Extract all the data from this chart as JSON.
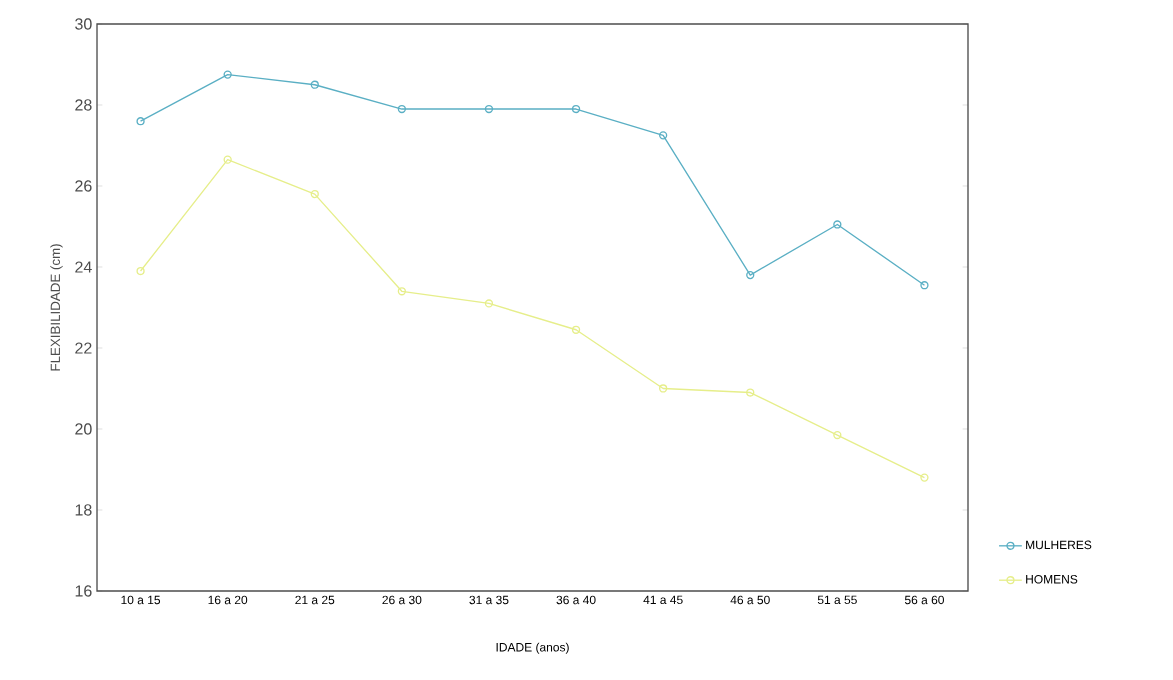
{
  "chart_data": {
    "type": "line",
    "xlabel": "IDADE (anos)",
    "ylabel": "FLEXIBILIDADE (cm)",
    "categories": [
      "10 a 15",
      "16 a 20",
      "21 a 25",
      "26 a 30",
      "31 a 35",
      "36 a 40",
      "41 a 45",
      "46 a 50",
      "51 a 55",
      "56 a 60"
    ],
    "series": [
      {
        "name": "MULHERES",
        "color": "#5aafc4",
        "values": [
          27.6,
          28.75,
          28.5,
          27.9,
          27.9,
          27.9,
          27.25,
          23.8,
          25.05,
          23.55
        ]
      },
      {
        "name": "HOMENS",
        "color": "#e6ee8a",
        "values": [
          23.9,
          26.65,
          25.8,
          23.4,
          23.1,
          22.45,
          21.0,
          20.9,
          19.85,
          18.8
        ]
      }
    ],
    "ylim": [
      16,
      30
    ],
    "yticks": [
      16,
      18,
      20,
      22,
      24,
      26,
      28,
      30
    ],
    "grid": false,
    "legend": "bottom right",
    "marker": "circle",
    "line_style": "solid"
  }
}
